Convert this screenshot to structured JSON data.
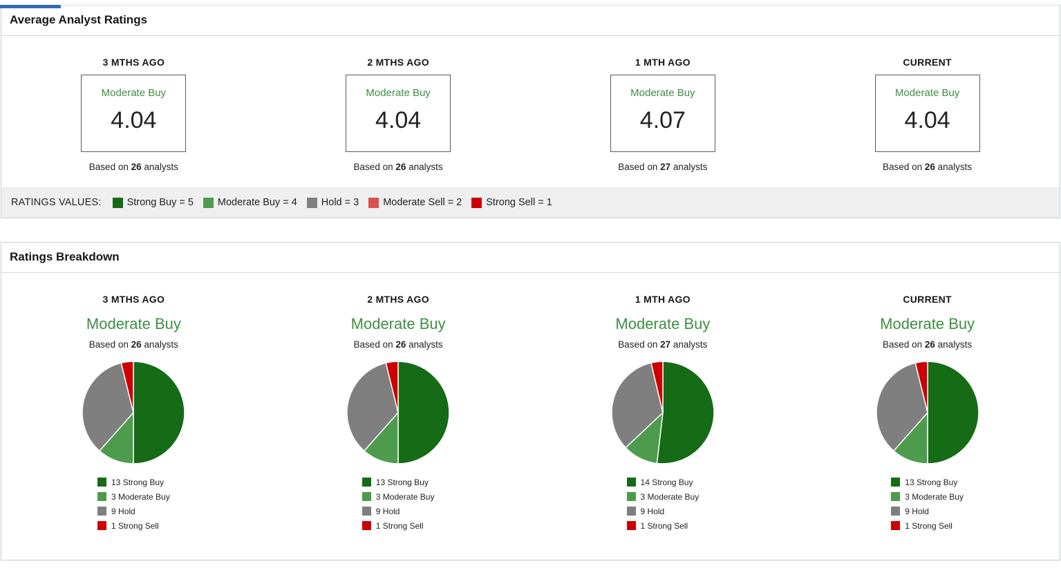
{
  "page": {
    "top_accent_color": "#2e6db4",
    "rating_text_color": "#3e8e41"
  },
  "average_ratings": {
    "title": "Average Analyst Ratings",
    "periods": [
      {
        "label": "3 MTHS AGO",
        "rating": "Moderate Buy",
        "value": "4.04",
        "based_prefix": "Based on",
        "analyst_count": "26",
        "based_suffix": "analysts"
      },
      {
        "label": "2 MTHS AGO",
        "rating": "Moderate Buy",
        "value": "4.04",
        "based_prefix": "Based on",
        "analyst_count": "26",
        "based_suffix": "analysts"
      },
      {
        "label": "1 MTH AGO",
        "rating": "Moderate Buy",
        "value": "4.07",
        "based_prefix": "Based on",
        "analyst_count": "27",
        "based_suffix": "analysts"
      },
      {
        "label": "CURRENT",
        "rating": "Moderate Buy",
        "value": "4.04",
        "based_prefix": "Based on",
        "analyst_count": "26",
        "based_suffix": "analysts"
      }
    ],
    "ratings_values": {
      "label": "RATINGS VALUES:",
      "items": [
        {
          "label": "Strong Buy = 5",
          "color": "#166b16"
        },
        {
          "label": "Moderate Buy = 4",
          "color": "#4d9b4d"
        },
        {
          "label": "Hold = 3",
          "color": "#7f7f7f"
        },
        {
          "label": "Moderate Sell = 2",
          "color": "#d9534f"
        },
        {
          "label": "Strong Sell = 1",
          "color": "#cc0000"
        }
      ]
    }
  },
  "ratings_breakdown": {
    "title": "Ratings Breakdown",
    "periods": [
      {
        "label": "3 MTHS AGO",
        "rating": "Moderate Buy",
        "based_prefix": "Based on",
        "analyst_count": "26",
        "based_suffix": "analysts",
        "legend": [
          {
            "label": "13 Strong Buy",
            "color": "#166b16"
          },
          {
            "label": "3 Moderate Buy",
            "color": "#4d9b4d"
          },
          {
            "label": "9 Hold",
            "color": "#7f7f7f"
          },
          {
            "label": "1 Strong Sell",
            "color": "#cc0000"
          }
        ]
      },
      {
        "label": "2 MTHS AGO",
        "rating": "Moderate Buy",
        "based_prefix": "Based on",
        "analyst_count": "26",
        "based_suffix": "analysts",
        "legend": [
          {
            "label": "13 Strong Buy",
            "color": "#166b16"
          },
          {
            "label": "3 Moderate Buy",
            "color": "#4d9b4d"
          },
          {
            "label": "9 Hold",
            "color": "#7f7f7f"
          },
          {
            "label": "1 Strong Sell",
            "color": "#cc0000"
          }
        ]
      },
      {
        "label": "1 MTH AGO",
        "rating": "Moderate Buy",
        "based_prefix": "Based on",
        "analyst_count": "27",
        "based_suffix": "analysts",
        "legend": [
          {
            "label": "14 Strong Buy",
            "color": "#166b16"
          },
          {
            "label": "3 Moderate Buy",
            "color": "#4d9b4d"
          },
          {
            "label": "9 Hold",
            "color": "#7f7f7f"
          },
          {
            "label": "1 Strong Sell",
            "color": "#cc0000"
          }
        ]
      },
      {
        "label": "CURRENT",
        "rating": "Moderate Buy",
        "based_prefix": "Based on",
        "analyst_count": "26",
        "based_suffix": "analysts",
        "legend": [
          {
            "label": "13 Strong Buy",
            "color": "#166b16"
          },
          {
            "label": "3 Moderate Buy",
            "color": "#4d9b4d"
          },
          {
            "label": "9 Hold",
            "color": "#7f7f7f"
          },
          {
            "label": "1 Strong Sell",
            "color": "#cc0000"
          }
        ]
      }
    ]
  },
  "chart_data": [
    {
      "type": "pie",
      "title": "3 MTHS AGO - Moderate Buy (based on 26 analysts)",
      "labels": [
        "Strong Buy",
        "Moderate Buy",
        "Hold",
        "Strong Sell"
      ],
      "values": [
        13,
        3,
        9,
        1
      ],
      "colors": [
        "#166b16",
        "#4d9b4d",
        "#7f7f7f",
        "#cc0000"
      ],
      "legend_position": "bottom"
    },
    {
      "type": "pie",
      "title": "2 MTHS AGO - Moderate Buy (based on 26 analysts)",
      "labels": [
        "Strong Buy",
        "Moderate Buy",
        "Hold",
        "Strong Sell"
      ],
      "values": [
        13,
        3,
        9,
        1
      ],
      "colors": [
        "#166b16",
        "#4d9b4d",
        "#7f7f7f",
        "#cc0000"
      ],
      "legend_position": "bottom"
    },
    {
      "type": "pie",
      "title": "1 MTH AGO - Moderate Buy (based on 27 analysts)",
      "labels": [
        "Strong Buy",
        "Moderate Buy",
        "Hold",
        "Strong Sell"
      ],
      "values": [
        14,
        3,
        9,
        1
      ],
      "colors": [
        "#166b16",
        "#4d9b4d",
        "#7f7f7f",
        "#cc0000"
      ],
      "legend_position": "bottom"
    },
    {
      "type": "pie",
      "title": "CURRENT - Moderate Buy (based on 26 analysts)",
      "labels": [
        "Strong Buy",
        "Moderate Buy",
        "Hold",
        "Strong Sell"
      ],
      "values": [
        13,
        3,
        9,
        1
      ],
      "colors": [
        "#166b16",
        "#4d9b4d",
        "#7f7f7f",
        "#cc0000"
      ],
      "legend_position": "bottom"
    },
    {
      "type": "table",
      "title": "Average Analyst Ratings",
      "categories": [
        "3 MTHS AGO",
        "2 MTHS AGO",
        "1 MTH AGO",
        "CURRENT"
      ],
      "values": [
        4.04,
        4.04,
        4.07,
        4.04
      ],
      "analyst_counts": [
        26,
        26,
        27,
        26
      ],
      "consensus": [
        "Moderate Buy",
        "Moderate Buy",
        "Moderate Buy",
        "Moderate Buy"
      ],
      "scale": {
        "Strong Buy": 5,
        "Moderate Buy": 4,
        "Hold": 3,
        "Moderate Sell": 2,
        "Strong Sell": 1
      }
    }
  ]
}
